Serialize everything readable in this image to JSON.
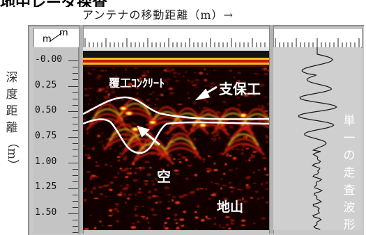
{
  "header": {
    "title": "地中レーダ探査",
    "x_axis_label": "アンテナの移動距離（m）→"
  },
  "y_axis": {
    "label_chars": [
      "深",
      "度",
      "距",
      "離",
      "（m）"
    ],
    "unit_top": "m",
    "unit_bottom": "m",
    "ticks": [
      "-0.00",
      "0.25",
      "0.50",
      "0.75",
      "1.00",
      "1.25",
      "1.50"
    ]
  },
  "annotations": {
    "lining_concrete": "覆工ｺﾝｸﾘｰﾄ",
    "support": "支保工",
    "void": "空",
    "ground": "地山"
  },
  "waveform_caption": [
    "単",
    "一",
    "の",
    "走",
    "査",
    "波",
    "形"
  ],
  "colors": {
    "radar_background": "#120000",
    "reflection_red": "#d61a10",
    "reflection_yellow": "#f2dc2a",
    "boundary_line": "#ffffff",
    "panel_gray": "#c9c9c9"
  }
}
